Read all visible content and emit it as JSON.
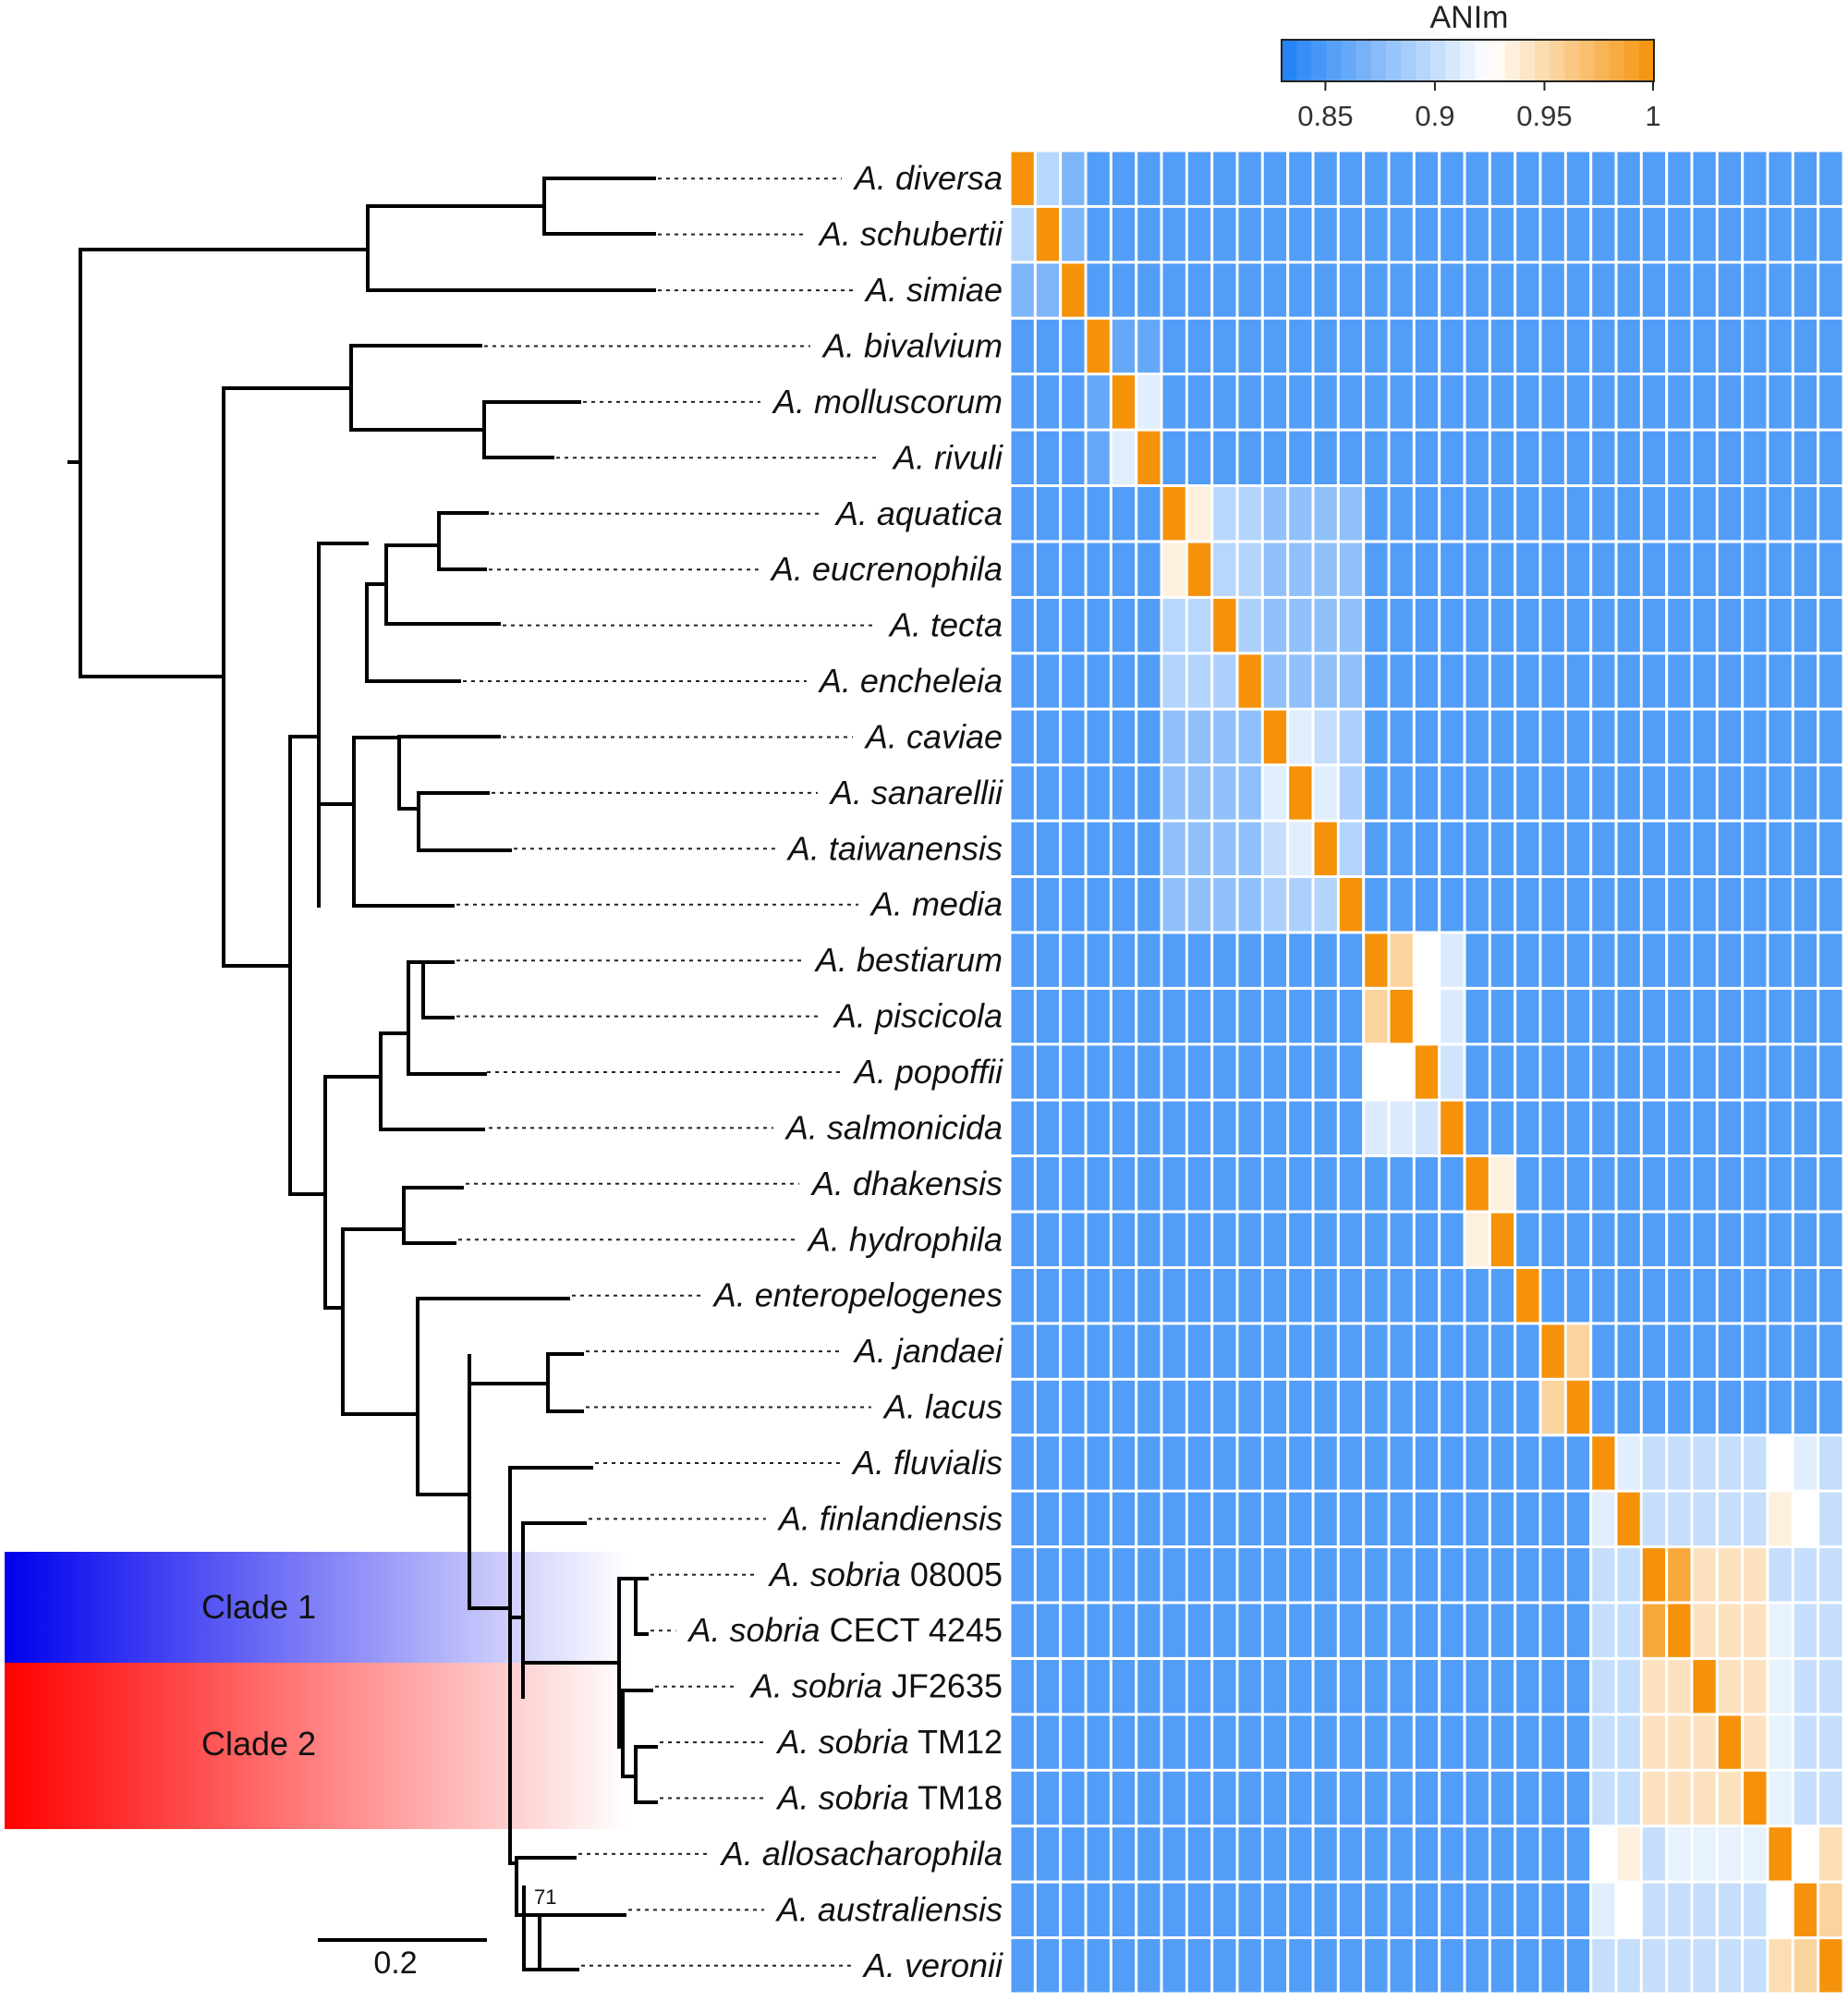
{
  "chart_data": {
    "type": "heatmap",
    "title": "ANIm",
    "colorbar": {
      "label": "ANIm",
      "range": [
        0.83,
        1.0
      ],
      "ticks": [
        0.85,
        0.9,
        0.95,
        1.0
      ],
      "tick_labels": [
        "0.85",
        "0.9",
        "0.95",
        "1"
      ],
      "colors": {
        "low": "#1e80f5",
        "mid": "#ffffff",
        "high": "#f5920a"
      },
      "mid_value": 0.925
    },
    "taxa": [
      {
        "genus": "A.",
        "species": "diversa",
        "strain": ""
      },
      {
        "genus": "A.",
        "species": "schubertii",
        "strain": ""
      },
      {
        "genus": "A.",
        "species": "simiae",
        "strain": ""
      },
      {
        "genus": "A.",
        "species": "bivalvium",
        "strain": ""
      },
      {
        "genus": "A.",
        "species": "molluscorum",
        "strain": ""
      },
      {
        "genus": "A.",
        "species": "rivuli",
        "strain": ""
      },
      {
        "genus": "A.",
        "species": "aquatica",
        "strain": ""
      },
      {
        "genus": "A.",
        "species": "eucrenophila",
        "strain": ""
      },
      {
        "genus": "A.",
        "species": "tecta",
        "strain": ""
      },
      {
        "genus": "A.",
        "species": "encheleia",
        "strain": ""
      },
      {
        "genus": "A.",
        "species": "caviae",
        "strain": ""
      },
      {
        "genus": "A.",
        "species": "sanarellii",
        "strain": ""
      },
      {
        "genus": "A.",
        "species": "taiwanensis",
        "strain": ""
      },
      {
        "genus": "A.",
        "species": "media",
        "strain": ""
      },
      {
        "genus": "A.",
        "species": "bestiarum",
        "strain": ""
      },
      {
        "genus": "A.",
        "species": "piscicola",
        "strain": ""
      },
      {
        "genus": "A.",
        "species": "popoffii",
        "strain": ""
      },
      {
        "genus": "A.",
        "species": "salmonicida",
        "strain": ""
      },
      {
        "genus": "A.",
        "species": "dhakensis",
        "strain": ""
      },
      {
        "genus": "A.",
        "species": "hydrophila",
        "strain": ""
      },
      {
        "genus": "A.",
        "species": "enteropelogenes",
        "strain": ""
      },
      {
        "genus": "A.",
        "species": "jandaei",
        "strain": ""
      },
      {
        "genus": "A.",
        "species": "lacus",
        "strain": ""
      },
      {
        "genus": "A.",
        "species": "fluvialis",
        "strain": ""
      },
      {
        "genus": "A.",
        "species": "finlandiensis",
        "strain": ""
      },
      {
        "genus": "A.",
        "species": "sobria",
        "strain": "08005"
      },
      {
        "genus": "A.",
        "species": "sobria",
        "strain": "CECT 4245"
      },
      {
        "genus": "A.",
        "species": "sobria",
        "strain": "JF2635"
      },
      {
        "genus": "A.",
        "species": "sobria",
        "strain": "TM12"
      },
      {
        "genus": "A.",
        "species": "sobria",
        "strain": "TM18"
      },
      {
        "genus": "A.",
        "species": "allosacharophila",
        "strain": ""
      },
      {
        "genus": "A.",
        "species": "australiensis",
        "strain": ""
      },
      {
        "genus": "A.",
        "species": "veronii",
        "strain": ""
      }
    ],
    "tree": {
      "branch_lengths": "relative, 0.2 scale bar",
      "bootstrap_labels": [
        "71"
      ],
      "scale_bar": {
        "label": "0.2",
        "length": 0.2
      }
    },
    "clades": [
      {
        "label": "Clade 1",
        "color": "#0000ee",
        "members": [
          "A. sobria 08005",
          "A. sobria CECT 4245"
        ]
      },
      {
        "label": "Clade 2",
        "color": "#ff0000",
        "members": [
          "A. sobria JF2635",
          "A. sobria TM12",
          "A. sobria TM18"
        ]
      }
    ],
    "ani_base": 0.852,
    "ani_groups": [
      {
        "rows": [
          0,
          2
        ],
        "value": 0.87
      },
      {
        "rows": [
          3,
          5
        ],
        "value": 0.86
      },
      {
        "rows": [
          6,
          13
        ],
        "value": 0.878
      },
      {
        "rows": [
          14,
          17
        ],
        "value": 0.885
      },
      {
        "rows": [
          18,
          19
        ],
        "value": 0.882
      },
      {
        "rows": [
          21,
          22
        ],
        "value": 0.878
      },
      {
        "rows": [
          23,
          32
        ],
        "value": 0.9
      },
      {
        "rows": [
          25,
          29
        ],
        "value": 0.945
      }
    ],
    "ani_cells": [
      [
        0,
        1,
        0.895
      ],
      [
        4,
        5,
        0.912
      ],
      [
        6,
        7,
        0.935
      ],
      [
        6,
        8,
        0.895
      ],
      [
        7,
        8,
        0.895
      ],
      [
        6,
        9,
        0.893
      ],
      [
        7,
        9,
        0.893
      ],
      [
        8,
        9,
        0.89
      ],
      [
        10,
        11,
        0.912
      ],
      [
        10,
        12,
        0.9
      ],
      [
        11,
        12,
        0.912
      ],
      [
        10,
        13,
        0.89
      ],
      [
        11,
        13,
        0.89
      ],
      [
        12,
        13,
        0.893
      ],
      [
        14,
        15,
        0.955
      ],
      [
        14,
        16,
        0.925
      ],
      [
        15,
        16,
        0.925
      ],
      [
        14,
        17,
        0.91
      ],
      [
        15,
        17,
        0.91
      ],
      [
        16,
        17,
        0.905
      ],
      [
        18,
        19,
        0.935
      ],
      [
        21,
        22,
        0.955
      ],
      [
        23,
        24,
        0.912
      ],
      [
        23,
        30,
        0.925
      ],
      [
        24,
        30,
        0.935
      ],
      [
        23,
        31,
        0.912
      ],
      [
        24,
        31,
        0.925
      ],
      [
        25,
        26,
        0.985
      ],
      [
        30,
        31,
        0.925
      ],
      [
        30,
        32,
        0.948
      ],
      [
        31,
        32,
        0.955
      ],
      [
        26,
        30,
        0.915
      ],
      [
        27,
        30,
        0.915
      ],
      [
        28,
        30,
        0.915
      ],
      [
        29,
        30,
        0.915
      ]
    ]
  }
}
